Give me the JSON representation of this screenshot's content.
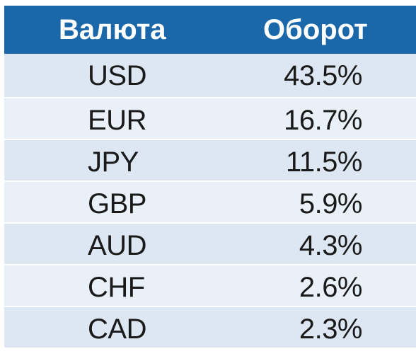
{
  "colors": {
    "header_bg": "#1a67aa",
    "header_text": "#ffffff",
    "row_odd": "#dde7f3",
    "row_even": "#e9f0f8",
    "cell_text": "#1a1a1a"
  },
  "chart_data": {
    "type": "table",
    "columns": [
      "Валюта",
      "Оборот"
    ],
    "rows": [
      {
        "currency": "USD",
        "turnover": "43.5%"
      },
      {
        "currency": "EUR",
        "turnover": "16.7%"
      },
      {
        "currency": "JPY",
        "turnover": "11.5%"
      },
      {
        "currency": "GBP",
        "turnover": "5.9%"
      },
      {
        "currency": "AUD",
        "turnover": "4.3%"
      },
      {
        "currency": "CHF",
        "turnover": "2.6%"
      },
      {
        "currency": "CAD",
        "turnover": "2.3%"
      }
    ]
  }
}
